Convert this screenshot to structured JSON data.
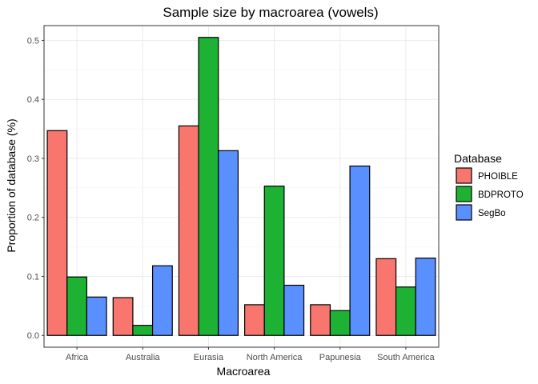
{
  "chart_data": {
    "type": "bar",
    "title": "Sample size by macroarea (vowels)",
    "xlabel": "Macroarea",
    "ylabel": "Proportion of database (%)",
    "categories": [
      "Africa",
      "Australia",
      "Eurasia",
      "North America",
      "Papunesia",
      "South America"
    ],
    "series": [
      {
        "name": "PHOIBLE",
        "color": "#F8766D",
        "values": [
          0.347,
          0.064,
          0.355,
          0.052,
          0.052,
          0.13
        ]
      },
      {
        "name": "BDPROTO",
        "color": "#1DB233",
        "values": [
          0.099,
          0.017,
          0.505,
          0.253,
          0.042,
          0.082
        ]
      },
      {
        "name": "SegBo",
        "color": "#5A8FFF",
        "values": [
          0.065,
          0.118,
          0.313,
          0.085,
          0.287,
          0.131
        ]
      }
    ],
    "ylim": [
      -0.02,
      0.525
    ],
    "yticks": [
      0.0,
      0.1,
      0.2,
      0.3,
      0.4,
      0.5
    ],
    "ytick_labels": [
      "0.0",
      "0.1",
      "0.2",
      "0.3",
      "0.4",
      "0.5"
    ],
    "legend": {
      "title": "Database",
      "position": "right"
    },
    "grid": true
  }
}
